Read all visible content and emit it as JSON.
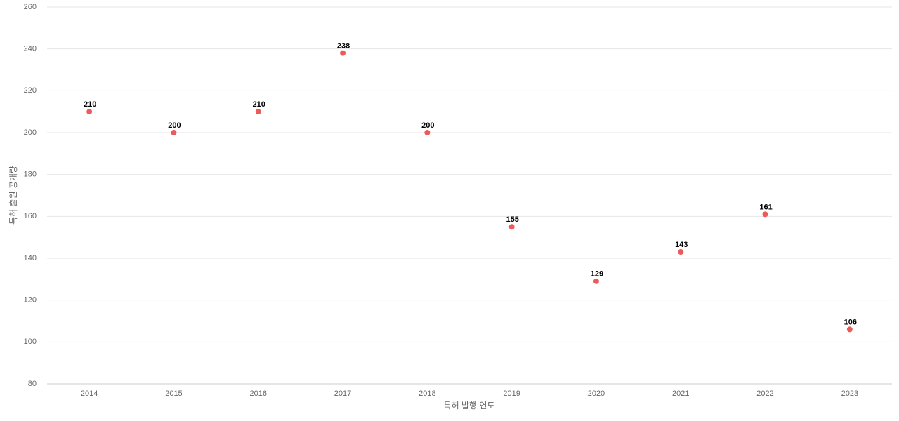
{
  "chart_data": {
    "type": "line",
    "x_label": "특허 발행 연도",
    "y_label": "특허 출원 공개량",
    "categories": [
      "2014",
      "2015",
      "2016",
      "2017",
      "2018",
      "2019",
      "2020",
      "2021",
      "2022",
      "2023"
    ],
    "series": [
      {
        "name": "특허 출원 공개량",
        "color": "#ec5b5b",
        "values": [
          210,
          200,
          210,
          238,
          200,
          155,
          129,
          143,
          161,
          106
        ]
      }
    ],
    "ylim": [
      80,
      260
    ],
    "yticks": [
      80,
      100,
      120,
      140,
      160,
      180,
      200,
      220,
      240,
      260
    ],
    "grid": true
  }
}
